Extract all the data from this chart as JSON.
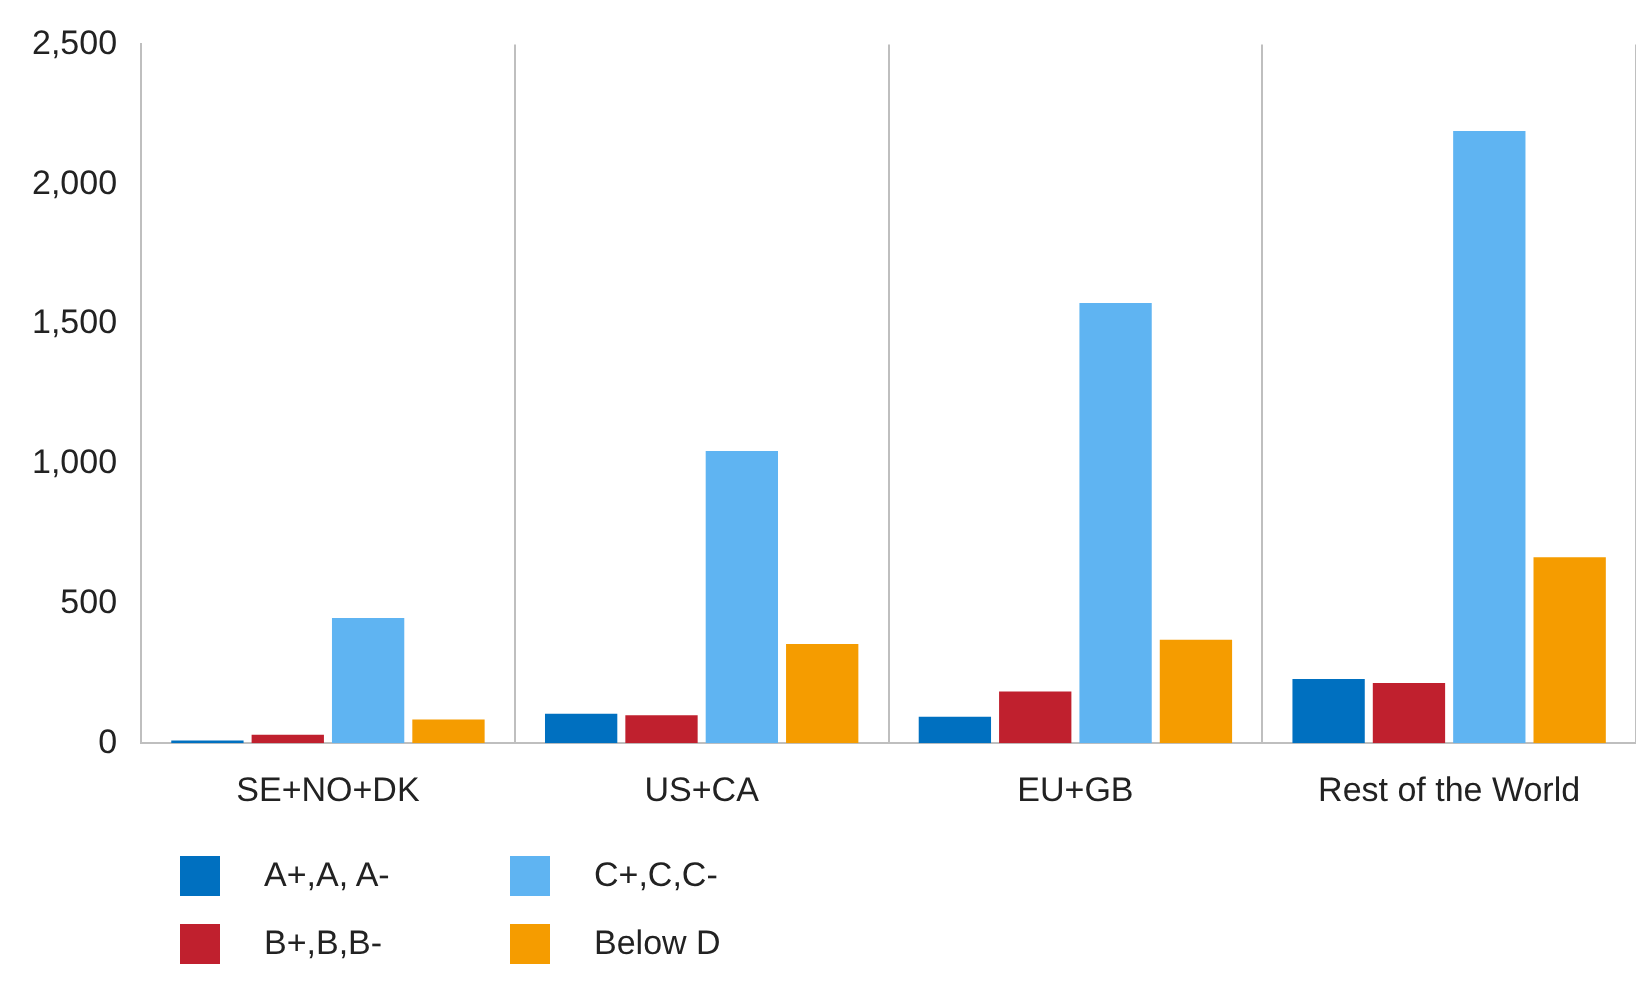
{
  "chart_data": {
    "type": "bar",
    "categories": [
      "SE+NO+DK",
      "US+CA",
      "EU+GB",
      "Rest of the World"
    ],
    "series": [
      {
        "name": "A+,A, A-",
        "color": "#0070c0",
        "values": [
          10,
          105,
          95,
          230
        ]
      },
      {
        "name": "B+,B,B-",
        "color": "#c0202e",
        "values": [
          30,
          100,
          185,
          215
        ]
      },
      {
        "name": "C+,C,C-",
        "color": "#5fb4f2",
        "values": [
          448,
          1045,
          1575,
          2190
        ]
      },
      {
        "name": "Below D",
        "color": "#f59c00",
        "values": [
          85,
          355,
          370,
          665
        ]
      }
    ],
    "ylim": [
      0,
      2500
    ],
    "yticks": [
      0,
      500,
      {
        "value": 1000,
        "label": "1,000"
      },
      {
        "value": 1500,
        "label": "1,500"
      },
      {
        "value": 2000,
        "label": "2,000"
      },
      {
        "value": 2500,
        "label": "2,500"
      }
    ],
    "grid": "x",
    "legend": "bottom"
  }
}
